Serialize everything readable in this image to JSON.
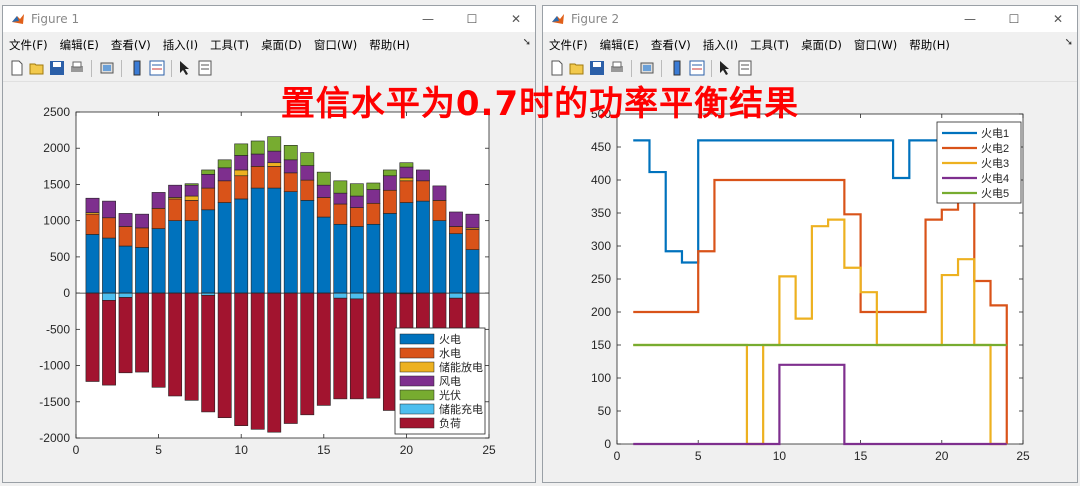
{
  "banner": "置信水平为0.7时的功率平衡结果",
  "menu": [
    "文件(F)",
    "编辑(E)",
    "查看(V)",
    "插入(I)",
    "工具(T)",
    "桌面(D)",
    "窗口(W)",
    "帮助(H)"
  ],
  "windows": [
    {
      "title": "Figure 1"
    },
    {
      "title": "Figure 2"
    }
  ],
  "colors": {
    "blue": "#0072BD",
    "orange": "#D95319",
    "yellow": "#EDB120",
    "purple": "#7E2F8E",
    "green": "#77AC30",
    "cyan": "#4DBEEE",
    "darkred": "#A2142F"
  },
  "chart_data": [
    {
      "type": "bar",
      "stacked": true,
      "x": [
        1,
        2,
        3,
        4,
        5,
        6,
        7,
        8,
        9,
        10,
        11,
        12,
        13,
        14,
        15,
        16,
        17,
        18,
        19,
        20,
        21,
        22,
        23,
        24
      ],
      "xlim": [
        0,
        25
      ],
      "ylim": [
        -2000,
        2500
      ],
      "xticks": [
        "0",
        "5",
        "10",
        "15",
        "20",
        "25"
      ],
      "yticks": [
        "2500",
        "2000",
        "1500",
        "1000",
        "500",
        "0",
        "-500",
        "-1000",
        "-1500",
        "-2000"
      ],
      "legend_position": "bottom-right",
      "series": [
        {
          "name": "火电",
          "color": "#0072BD",
          "values": [
            810,
            760,
            650,
            630,
            890,
            1000,
            1000,
            1150,
            1250,
            1300,
            1450,
            1450,
            1400,
            1280,
            1050,
            950,
            920,
            950,
            1100,
            1250,
            1270,
            1000,
            820,
            600
          ]
        },
        {
          "name": "水电",
          "color": "#D95319",
          "values": [
            280,
            280,
            270,
            270,
            280,
            300,
            280,
            300,
            300,
            320,
            300,
            300,
            260,
            280,
            270,
            280,
            260,
            290,
            320,
            300,
            280,
            280,
            100,
            280
          ]
        },
        {
          "name": "储能放电",
          "color": "#EDB120",
          "values": [
            20,
            0,
            0,
            0,
            0,
            20,
            60,
            0,
            0,
            80,
            0,
            50,
            0,
            0,
            0,
            0,
            0,
            0,
            0,
            40,
            0,
            0,
            0,
            20
          ]
        },
        {
          "name": "风电",
          "color": "#7E2F8E",
          "values": [
            200,
            230,
            180,
            190,
            220,
            170,
            150,
            190,
            180,
            200,
            170,
            160,
            180,
            200,
            170,
            150,
            160,
            190,
            200,
            150,
            150,
            200,
            200,
            190
          ]
        },
        {
          "name": "光伏",
          "color": "#77AC30",
          "values": [
            0,
            0,
            0,
            0,
            0,
            0,
            20,
            60,
            110,
            160,
            180,
            200,
            200,
            180,
            180,
            170,
            170,
            90,
            80,
            60,
            0,
            0,
            0,
            0
          ]
        },
        {
          "name": "储能充电",
          "color": "#4DBEEE",
          "values": [
            0,
            -100,
            -60,
            0,
            0,
            0,
            0,
            -30,
            0,
            0,
            0,
            0,
            0,
            0,
            0,
            -70,
            -80,
            0,
            0,
            -10,
            0,
            0,
            -70,
            0
          ]
        },
        {
          "name": "负荷",
          "color": "#A2142F",
          "values": [
            -1220,
            -1170,
            -1040,
            -1090,
            -1300,
            -1420,
            -1480,
            -1610,
            -1720,
            -1830,
            -1880,
            -1920,
            -1800,
            -1680,
            -1550,
            -1390,
            -1380,
            -1450,
            -1620,
            -1780,
            -1680,
            -1480,
            -1200,
            -1050
          ]
        }
      ]
    },
    {
      "type": "line",
      "step": true,
      "xlim": [
        0,
        25
      ],
      "ylim": [
        0,
        500
      ],
      "xticks": [
        "0",
        "5",
        "10",
        "15",
        "20",
        "25"
      ],
      "yticks": [
        "0",
        "50",
        "100",
        "150",
        "200",
        "250",
        "300",
        "350",
        "400",
        "450",
        "500"
      ],
      "legend_position": "top-right",
      "series": [
        {
          "name": "火电1",
          "color": "#0072BD",
          "x": [
            1,
            2,
            3,
            4,
            5,
            6,
            7,
            8,
            9,
            10,
            11,
            12,
            13,
            14,
            15,
            16,
            17,
            18,
            19,
            20,
            21,
            22,
            23,
            24
          ],
          "values": [
            460,
            412,
            292,
            275,
            460,
            460,
            460,
            460,
            460,
            460,
            460,
            460,
            460,
            460,
            460,
            460,
            403,
            460,
            460,
            460,
            460,
            460,
            460,
            460
          ]
        },
        {
          "name": "火电2",
          "color": "#D95319",
          "x": [
            1,
            2,
            3,
            4,
            5,
            6,
            7,
            8,
            9,
            10,
            11,
            12,
            13,
            14,
            15,
            16,
            17,
            18,
            19,
            20,
            21,
            22,
            23,
            24
          ],
          "values": [
            200,
            200,
            200,
            200,
            292,
            400,
            400,
            400,
            400,
            400,
            400,
            400,
            400,
            348,
            200,
            200,
            200,
            200,
            340,
            355,
            460,
            247,
            210,
            0
          ]
        },
        {
          "name": "火电3",
          "color": "#EDB120",
          "x": [
            1,
            2,
            3,
            4,
            5,
            6,
            7,
            8,
            9,
            10,
            11,
            12,
            13,
            14,
            15,
            16,
            17,
            18,
            19,
            20,
            21,
            22,
            23,
            24
          ],
          "values": [
            150,
            150,
            150,
            150,
            150,
            150,
            150,
            0,
            150,
            254,
            190,
            330,
            340,
            267,
            230,
            150,
            150,
            150,
            150,
            256,
            280,
            150,
            0,
            0
          ]
        },
        {
          "name": "火电4",
          "color": "#7E2F8E",
          "x": [
            1,
            2,
            3,
            4,
            5,
            6,
            7,
            8,
            9,
            10,
            11,
            12,
            13,
            14,
            15,
            16,
            17,
            18,
            19,
            20,
            21,
            22,
            23,
            24
          ],
          "values": [
            0,
            0,
            0,
            0,
            0,
            0,
            0,
            0,
            0,
            120,
            120,
            120,
            120,
            0,
            0,
            0,
            0,
            0,
            0,
            0,
            0,
            0,
            0,
            0
          ]
        },
        {
          "name": "火电5",
          "color": "#77AC30",
          "x": [
            1,
            2,
            3,
            4,
            5,
            6,
            7,
            8,
            9,
            10,
            11,
            12,
            13,
            14,
            15,
            16,
            17,
            18,
            19,
            20,
            21,
            22,
            23,
            24
          ],
          "values": [
            150,
            150,
            150,
            150,
            150,
            150,
            150,
            150,
            150,
            150,
            150,
            150,
            150,
            150,
            150,
            150,
            150,
            150,
            150,
            150,
            150,
            150,
            150,
            150
          ]
        }
      ]
    }
  ]
}
